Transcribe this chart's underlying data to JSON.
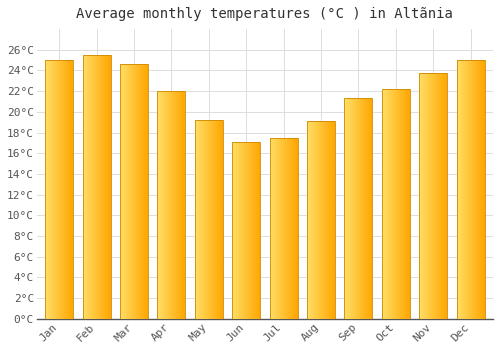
{
  "title": "Average monthly temperatures (°C ) in Altãnia",
  "months": [
    "Jan",
    "Feb",
    "Mar",
    "Apr",
    "May",
    "Jun",
    "Jul",
    "Aug",
    "Sep",
    "Oct",
    "Nov",
    "Dec"
  ],
  "values": [
    25.0,
    25.5,
    24.6,
    22.0,
    19.2,
    17.1,
    17.5,
    19.1,
    21.3,
    22.2,
    23.8,
    25.0
  ],
  "bar_color_left": "#FFD966",
  "bar_color_right": "#FFA500",
  "bar_edge_color": "#CC8800",
  "background_color": "#FFFFFF",
  "grid_color": "#DDDDDD",
  "text_color": "#555555",
  "ylim": [
    0,
    28
  ],
  "yticks": [
    0,
    2,
    4,
    6,
    8,
    10,
    12,
    14,
    16,
    18,
    20,
    22,
    24,
    26
  ],
  "title_fontsize": 10,
  "tick_fontsize": 8
}
